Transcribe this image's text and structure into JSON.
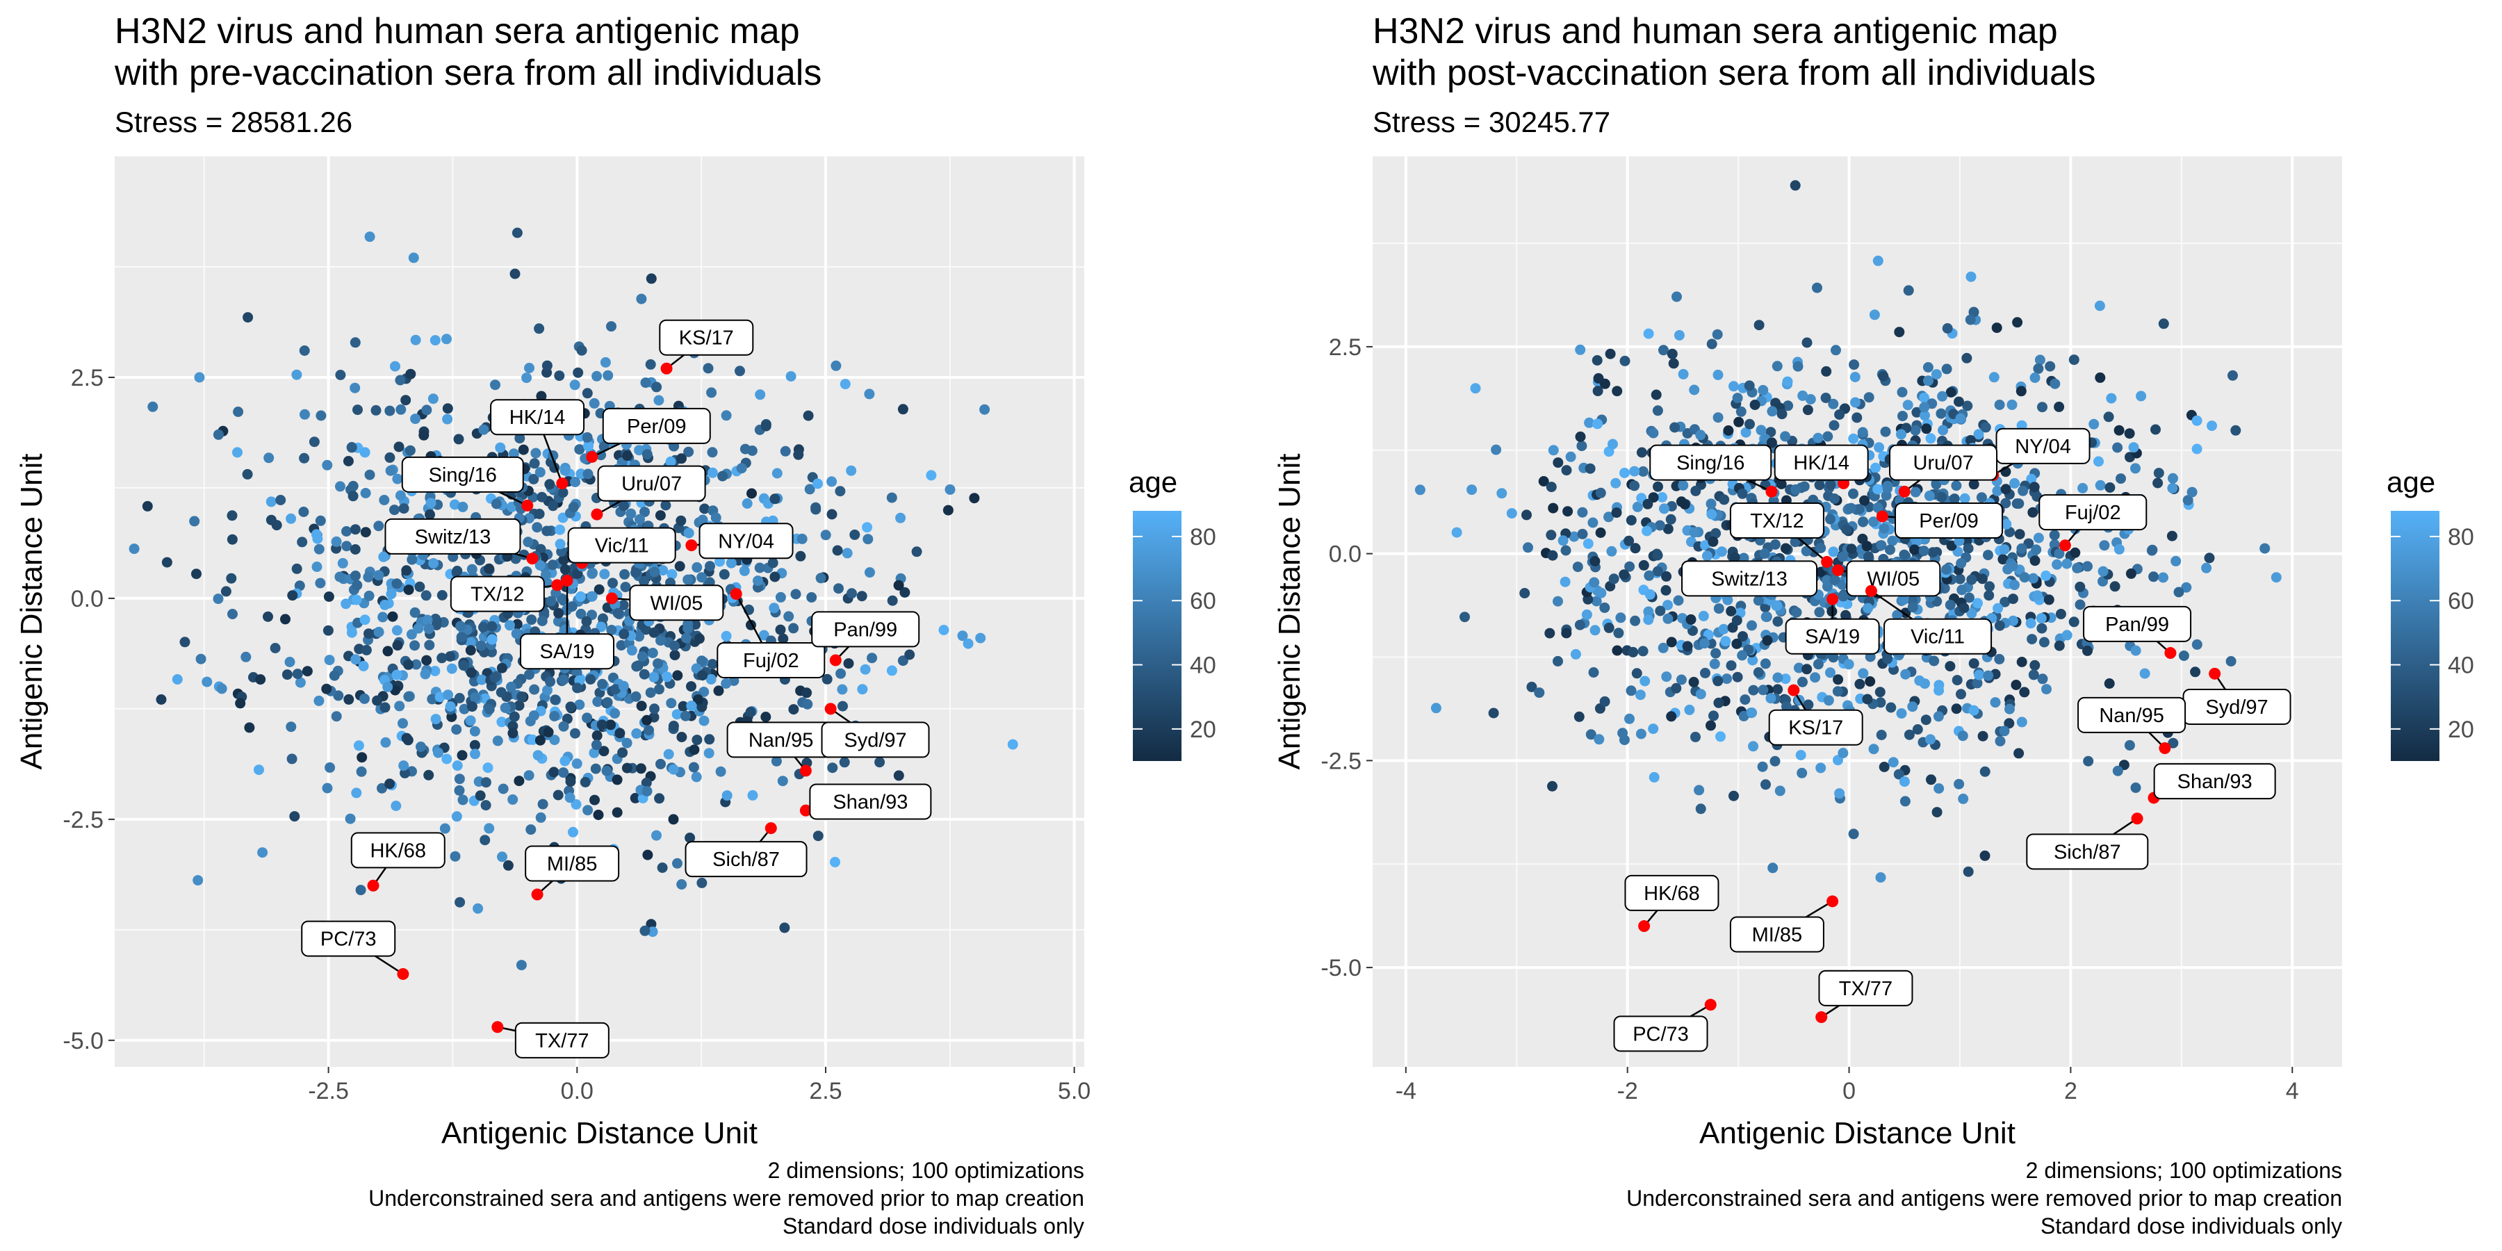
{
  "chart_data": [
    {
      "type": "scatter",
      "title": "H3N2 virus and human sera antigenic map\nwith pre-vaccination sera from all individuals",
      "subtitle": "Stress = 28581.26",
      "xlabel": "Antigenic Distance Unit",
      "ylabel": "Antigenic Distance Unit",
      "xlim": [
        -4.65,
        5.1
      ],
      "ylim": [
        -5.3,
        5.0
      ],
      "xticks": [
        -2.5,
        0.0,
        2.5,
        5.0
      ],
      "xtick_labels": [
        "-2.5",
        "0.0",
        "2.5",
        "5.0"
      ],
      "yticks": [
        -5.0,
        -2.5,
        0.0,
        2.5
      ],
      "ytick_labels": [
        "-5.0",
        "-2.5",
        "0.0",
        "2.5"
      ],
      "grid": true,
      "caption": [
        "2 dimensions; 100 optimizations",
        "Underconstrained sera and antigens were removed prior to map creation",
        "Standard dose individuals only"
      ],
      "legend": {
        "title": "age",
        "ticks": [
          20,
          40,
          60,
          80
        ],
        "range": [
          10,
          88
        ],
        "low_color": "#132B43",
        "high_color": "#56B1F7",
        "placement": "right"
      },
      "antigen_color": "#FF0000",
      "sera": {
        "count": 1400,
        "center": [
          -0.1,
          -0.1
        ],
        "spread": [
          1.55,
          1.35
        ]
      },
      "antigens": [
        {
          "name": "KS/17",
          "x": 0.9,
          "y": 2.6,
          "lx": 1.3,
          "ly": 2.95
        },
        {
          "name": "HK/14",
          "x": -0.15,
          "y": 1.3,
          "lx": -0.4,
          "ly": 2.05
        },
        {
          "name": "Per/09",
          "x": 0.15,
          "y": 1.6,
          "lx": 0.8,
          "ly": 1.95
        },
        {
          "name": "Sing/16",
          "x": -0.5,
          "y": 1.05,
          "lx": -1.15,
          "ly": 1.4
        },
        {
          "name": "Uru/07",
          "x": 0.2,
          "y": 0.95,
          "lx": 0.75,
          "ly": 1.3
        },
        {
          "name": "Switz/13",
          "x": -0.45,
          "y": 0.45,
          "lx": -1.25,
          "ly": 0.7
        },
        {
          "name": "Vic/11",
          "x": 0.05,
          "y": 0.4,
          "lx": 0.45,
          "ly": 0.6
        },
        {
          "name": "NY/04",
          "x": 1.15,
          "y": 0.6,
          "lx": 1.7,
          "ly": 0.65
        },
        {
          "name": "TX/12",
          "x": -0.2,
          "y": 0.15,
          "lx": -0.8,
          "ly": 0.05
        },
        {
          "name": "WI/05",
          "x": 0.35,
          "y": 0.0,
          "lx": 1.0,
          "ly": -0.05
        },
        {
          "name": "SA/19",
          "x": -0.1,
          "y": 0.2,
          "lx": -0.1,
          "ly": -0.6
        },
        {
          "name": "Fuj/02",
          "x": 1.6,
          "y": 0.05,
          "lx": 1.95,
          "ly": -0.7
        },
        {
          "name": "Pan/99",
          "x": 2.6,
          "y": -0.7,
          "lx": 2.9,
          "ly": -0.35
        },
        {
          "name": "Nan/95",
          "x": 2.3,
          "y": -1.95,
          "lx": 2.05,
          "ly": -1.6
        },
        {
          "name": "Syd/97",
          "x": 2.55,
          "y": -1.25,
          "lx": 3.0,
          "ly": -1.6
        },
        {
          "name": "Shan/93",
          "x": 2.3,
          "y": -2.4,
          "lx": 2.95,
          "ly": -2.3
        },
        {
          "name": "Sich/87",
          "x": 1.95,
          "y": -2.6,
          "lx": 1.7,
          "ly": -2.95
        },
        {
          "name": "HK/68",
          "x": -2.05,
          "y": -3.25,
          "lx": -1.8,
          "ly": -2.85
        },
        {
          "name": "MI/85",
          "x": -0.4,
          "y": -3.35,
          "lx": -0.05,
          "ly": -3.0
        },
        {
          "name": "PC/73",
          "x": -1.75,
          "y": -4.25,
          "lx": -2.3,
          "ly": -3.85
        },
        {
          "name": "TX/77",
          "x": -0.8,
          "y": -4.85,
          "lx": -0.15,
          "ly": -5.0
        }
      ]
    },
    {
      "type": "scatter",
      "title": "H3N2 virus and human sera antigenic map\nwith post-vaccination sera from all individuals",
      "subtitle": "Stress = 30245.77",
      "xlabel": "Antigenic Distance Unit",
      "ylabel": "Antigenic Distance Unit",
      "xlim": [
        -4.3,
        4.45
      ],
      "ylim": [
        -6.2,
        4.8
      ],
      "xticks": [
        -4,
        -2,
        0,
        2,
        4
      ],
      "xtick_labels": [
        "-4",
        "-2",
        "0",
        "2",
        "4"
      ],
      "yticks": [
        -5.0,
        -2.5,
        0.0,
        2.5
      ],
      "ytick_labels": [
        "-5.0",
        "-2.5",
        "0.0",
        "2.5"
      ],
      "grid": true,
      "caption": [
        "2 dimensions; 100 optimizations",
        "Underconstrained sera and antigens were removed prior to map creation",
        "Standard dose individuals only"
      ],
      "legend": {
        "title": "age",
        "ticks": [
          20,
          40,
          60,
          80
        ],
        "range": [
          10,
          88
        ],
        "low_color": "#132B43",
        "high_color": "#56B1F7",
        "placement": "right"
      },
      "antigen_color": "#FF0000",
      "sera": {
        "count": 1400,
        "center": [
          -0.05,
          -0.05
        ],
        "spread": [
          1.35,
          1.25
        ]
      },
      "antigens": [
        {
          "name": "NY/04",
          "x": 1.3,
          "y": 0.95,
          "lx": 1.75,
          "ly": 1.3
        },
        {
          "name": "Sing/16",
          "x": -0.7,
          "y": 0.75,
          "lx": -1.25,
          "ly": 1.1
        },
        {
          "name": "HK/14",
          "x": -0.05,
          "y": 0.85,
          "lx": -0.25,
          "ly": 1.1
        },
        {
          "name": "Uru/07",
          "x": 0.5,
          "y": 0.75,
          "lx": 0.85,
          "ly": 1.1
        },
        {
          "name": "Fuj/02",
          "x": 1.95,
          "y": 0.1,
          "lx": 2.2,
          "ly": 0.5
        },
        {
          "name": "TX/12",
          "x": -0.2,
          "y": -0.1,
          "lx": -0.65,
          "ly": 0.4
        },
        {
          "name": "Per/09",
          "x": 0.3,
          "y": 0.45,
          "lx": 0.9,
          "ly": 0.4
        },
        {
          "name": "Switz/13",
          "x": -0.35,
          "y": -0.3,
          "lx": -0.9,
          "ly": -0.3
        },
        {
          "name": "WI/05",
          "x": -0.1,
          "y": -0.2,
          "lx": 0.4,
          "ly": -0.3
        },
        {
          "name": "SA/19",
          "x": -0.15,
          "y": -0.55,
          "lx": -0.15,
          "ly": -1.0
        },
        {
          "name": "Vic/11",
          "x": 0.2,
          "y": -0.45,
          "lx": 0.8,
          "ly": -1.0
        },
        {
          "name": "Pan/99",
          "x": 2.9,
          "y": -1.2,
          "lx": 2.6,
          "ly": -0.85
        },
        {
          "name": "Syd/97",
          "x": 3.3,
          "y": -1.45,
          "lx": 3.5,
          "ly": -1.85
        },
        {
          "name": "KS/17",
          "x": -0.5,
          "y": -1.65,
          "lx": -0.3,
          "ly": -2.1
        },
        {
          "name": "Nan/95",
          "x": 2.85,
          "y": -2.35,
          "lx": 2.55,
          "ly": -1.95
        },
        {
          "name": "Shan/93",
          "x": 2.75,
          "y": -2.95,
          "lx": 3.3,
          "ly": -2.75
        },
        {
          "name": "Sich/87",
          "x": 2.6,
          "y": -3.2,
          "lx": 2.15,
          "ly": -3.6
        },
        {
          "name": "HK/68",
          "x": -1.85,
          "y": -4.5,
          "lx": -1.6,
          "ly": -4.1
        },
        {
          "name": "MI/85",
          "x": -0.15,
          "y": -4.2,
          "lx": -0.65,
          "ly": -4.6
        },
        {
          "name": "TX/77",
          "x": -0.25,
          "y": -5.6,
          "lx": 0.15,
          "ly": -5.25
        },
        {
          "name": "PC/73",
          "x": -1.25,
          "y": -5.45,
          "lx": -1.7,
          "ly": -5.8
        }
      ]
    }
  ]
}
